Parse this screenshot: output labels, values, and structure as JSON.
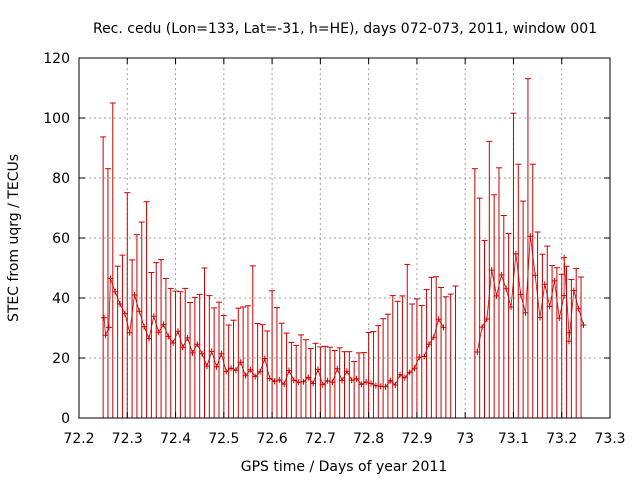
{
  "chart_data": {
    "type": "scatter",
    "title": "Rec. cedu (Lon=133, Lat=-31, h=HE), days 072-073, 2011, window 001",
    "xlabel": "GPS time / Days of year 2011",
    "ylabel": "STEC from uqrg / TECUs",
    "xlim": [
      72.2,
      73.3
    ],
    "ylim": [
      0,
      120
    ],
    "xticks": [
      "72.2",
      "72.3",
      "72.4",
      "72.5",
      "72.6",
      "72.7",
      "72.8",
      "72.9",
      "73",
      "73.1",
      "73.2",
      "73.3"
    ],
    "yticks": [
      "0",
      "20",
      "40",
      "60",
      "80",
      "100",
      "120"
    ],
    "grid": true,
    "colors": {
      "series": "#cc0000",
      "grid": "#a0a0a0",
      "axis": "#000000"
    },
    "series": [
      {
        "name": "STEC",
        "marker": "plus-with-errorbar",
        "x": [
          72.25,
          72.26,
          72.27,
          72.28,
          72.29,
          72.3,
          72.31,
          72.32,
          72.33,
          72.34,
          72.35,
          72.36,
          72.37,
          72.38,
          72.39,
          72.4,
          72.41,
          72.42,
          72.43,
          72.44,
          72.45,
          72.46,
          72.47,
          72.48,
          72.49,
          72.5,
          72.51,
          72.52,
          72.53,
          72.54,
          72.55,
          72.56,
          72.57,
          72.58,
          72.59,
          72.6,
          72.61,
          72.62,
          72.63,
          72.64,
          72.65,
          72.66,
          72.67,
          72.68,
          72.69,
          72.7,
          72.71,
          72.72,
          72.73,
          72.74,
          72.75,
          72.76,
          72.77,
          72.78,
          72.79,
          72.8,
          72.81,
          72.82,
          72.83,
          72.84,
          72.85,
          72.86,
          72.87,
          72.88,
          72.89,
          72.9,
          72.91,
          72.92,
          72.93,
          72.94,
          72.95,
          72.96,
          72.97,
          72.98,
          73.02,
          73.03,
          73.04,
          73.05,
          73.06,
          73.07,
          73.08,
          73.09,
          73.1,
          73.11,
          73.12,
          73.13,
          73.14,
          73.15,
          73.16,
          73.17,
          73.18,
          73.19,
          73.2,
          73.21,
          73.22,
          73.23,
          73.24
        ],
        "y": [
          93.7,
          83.1,
          105.0,
          50.6,
          54.3,
          75.1,
          52.7,
          61.1,
          65.3,
          72.1,
          48.5,
          51.8,
          52.8,
          46.5,
          43.2,
          42.3,
          42.1,
          43.2,
          38.5,
          40.2,
          41.2,
          50.0,
          40.8,
          36.7,
          38.6,
          34.2,
          31.0,
          32.6,
          36.6,
          37.0,
          37.4,
          50.7,
          31.5,
          31.1,
          29.0,
          42.4,
          36.8,
          31.6,
          28.3,
          25.2,
          24.2,
          27.7,
          26.1,
          23.2,
          24.9,
          23.7,
          23.9,
          23.6,
          22.5,
          23.4,
          22.1,
          22.1,
          18.8,
          21.7,
          21.8,
          28.5,
          28.8,
          30.8,
          33.1,
          34.6,
          40.8,
          38.9,
          40.7,
          51.2,
          38.0,
          39.7,
          37.5,
          42.8,
          46.9,
          47.1,
          43.5,
          40.4,
          41.3,
          44.0,
          83.1,
          73.3,
          59.2,
          92.2,
          74.4,
          83.4,
          67.5,
          61.5,
          101.6,
          84.6,
          72.3,
          113.1,
          84.6,
          62.0,
          54.6,
          57.3,
          50.8,
          50.1,
          47.9,
          50.6,
          46.2,
          49.8,
          47.0
        ],
        "minor_markers": [
          [
            72.252,
            33.4
          ],
          [
            72.255,
            27.6
          ],
          [
            72.265,
            46.5
          ],
          [
            72.262,
            30.2
          ],
          [
            72.275,
            42.1
          ],
          [
            72.285,
            38.0
          ],
          [
            72.295,
            34.8
          ],
          [
            72.305,
            28.4
          ],
          [
            72.315,
            41.0
          ],
          [
            72.325,
            35.6
          ],
          [
            72.335,
            30.4
          ],
          [
            72.345,
            26.5
          ],
          [
            72.355,
            33.9
          ],
          [
            72.365,
            28.6
          ],
          [
            72.375,
            31.2
          ],
          [
            72.385,
            27.2
          ],
          [
            72.395,
            25.0
          ],
          [
            72.405,
            28.9
          ],
          [
            72.415,
            23.6
          ],
          [
            72.425,
            26.7
          ],
          [
            72.435,
            21.7
          ],
          [
            72.445,
            24.6
          ],
          [
            72.455,
            21.4
          ],
          [
            72.465,
            17.3
          ],
          [
            72.475,
            22.2
          ],
          [
            72.485,
            17.1
          ],
          [
            72.495,
            21.4
          ],
          [
            72.505,
            15.5
          ],
          [
            72.515,
            16.6
          ],
          [
            72.525,
            15.9
          ],
          [
            72.535,
            18.6
          ],
          [
            72.545,
            14.1
          ],
          [
            72.555,
            16.1
          ],
          [
            72.565,
            13.8
          ],
          [
            72.575,
            15.4
          ],
          [
            72.585,
            19.8
          ],
          [
            72.595,
            13.2
          ],
          [
            72.605,
            12.2
          ],
          [
            72.615,
            12.7
          ],
          [
            72.625,
            11.3
          ],
          [
            72.635,
            15.8
          ],
          [
            72.645,
            12.6
          ],
          [
            72.655,
            11.9
          ],
          [
            72.665,
            12.1
          ],
          [
            72.675,
            13.5
          ],
          [
            72.685,
            11.5
          ],
          [
            72.695,
            16.2
          ],
          [
            72.705,
            11.1
          ],
          [
            72.715,
            12.4
          ],
          [
            72.725,
            11.9
          ],
          [
            72.735,
            16.4
          ],
          [
            72.745,
            12.5
          ],
          [
            72.755,
            15.6
          ],
          [
            72.765,
            12.6
          ],
          [
            72.775,
            13.1
          ],
          [
            72.785,
            11.2
          ],
          [
            72.795,
            12.0
          ],
          [
            72.805,
            11.5
          ],
          [
            72.815,
            10.8
          ],
          [
            72.825,
            10.6
          ],
          [
            72.835,
            10.4
          ],
          [
            72.845,
            12.4
          ],
          [
            72.855,
            11.0
          ],
          [
            72.865,
            14.4
          ],
          [
            72.875,
            13.4
          ],
          [
            72.885,
            15.2
          ],
          [
            72.895,
            16.6
          ],
          [
            72.905,
            20.3
          ],
          [
            72.915,
            20.5
          ],
          [
            72.925,
            24.6
          ],
          [
            72.935,
            26.9
          ],
          [
            72.945,
            32.9
          ],
          [
            72.955,
            30.2
          ],
          [
            73.025,
            22.0
          ],
          [
            73.035,
            30.3
          ],
          [
            73.045,
            33.0
          ],
          [
            73.055,
            49.3
          ],
          [
            73.065,
            40.7
          ],
          [
            73.075,
            47.7
          ],
          [
            73.085,
            43.1
          ],
          [
            73.095,
            37.0
          ],
          [
            73.105,
            54.7
          ],
          [
            73.115,
            41.2
          ],
          [
            73.125,
            35.1
          ],
          [
            73.135,
            60.6
          ],
          [
            73.145,
            47.6
          ],
          [
            73.155,
            33.5
          ],
          [
            73.165,
            44.6
          ],
          [
            73.175,
            37.2
          ],
          [
            73.185,
            45.7
          ],
          [
            73.195,
            33.3
          ],
          [
            73.205,
            40.8
          ],
          [
            73.215,
            28.4
          ],
          [
            73.225,
            42.5
          ],
          [
            73.235,
            36.4
          ],
          [
            73.245,
            31.0
          ],
          [
            73.215,
            25.6
          ],
          [
            73.205,
            53.4
          ]
        ]
      }
    ]
  }
}
